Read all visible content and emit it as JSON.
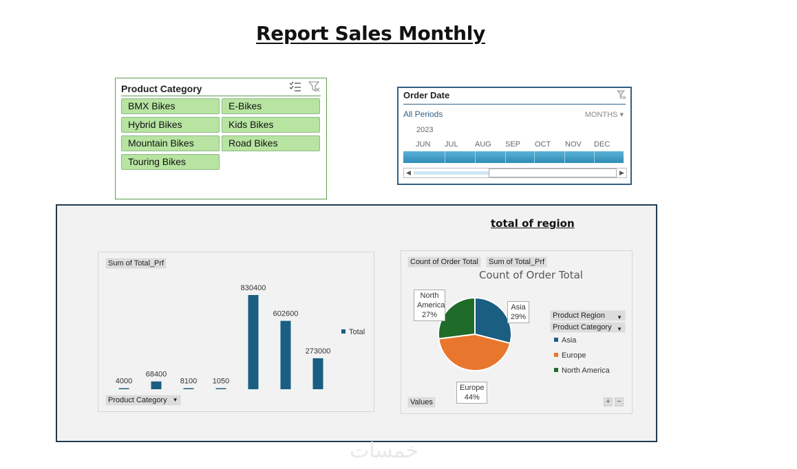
{
  "report": {
    "title": "Report Sales Monthly"
  },
  "slicer": {
    "title": "Product Category",
    "items": [
      "BMX Bikes",
      "E-Bikes",
      "Hybrid Bikes",
      "Kids Bikes",
      "Mountain Bikes",
      "Road Bikes",
      "Touring Bikes"
    ]
  },
  "timeline": {
    "title": "Order Date",
    "periods_label": "All Periods",
    "level": "MONTHS",
    "year": "2023",
    "months": [
      "JUN",
      "JUL",
      "AUG",
      "SEP",
      "OCT",
      "NOV",
      "DEC"
    ]
  },
  "panel": {
    "title": "total of region"
  },
  "bar_chart": {
    "value_field": "Sum of Total_Prf",
    "axis_field": "Product Category",
    "legend": "Total"
  },
  "pie_chart": {
    "value_fields": [
      "Count of Order Total",
      "Sum of Total_Prf"
    ],
    "title": "Count of Order Total",
    "filter_fields": [
      "Product Region",
      "Product Category"
    ],
    "values_button": "Values",
    "expand": "+",
    "collapse": "−",
    "callouts": [
      {
        "label": "Asia",
        "pct": "29%"
      },
      {
        "label": "Europe",
        "pct": "44%"
      },
      {
        "label": "North America",
        "pct": "27%"
      }
    ]
  },
  "chart_data": [
    {
      "type": "bar",
      "title": "",
      "series": [
        {
          "name": "Total",
          "values": [
            4000,
            68400,
            8100,
            1050,
            830400,
            602600,
            273000
          ]
        }
      ],
      "data_labels": [
        "4000",
        "68400",
        "8100",
        "1050",
        "830400",
        "602600",
        "273000"
      ],
      "ylim": [
        0,
        900000
      ],
      "color": "#1a5e82"
    },
    {
      "type": "pie",
      "title": "Count of Order Total",
      "categories": [
        "Asia",
        "Europe",
        "North America"
      ],
      "values": [
        29,
        44,
        27
      ],
      "colors": [
        "#1a5e82",
        "#e8762d",
        "#1f6b2a"
      ]
    }
  ],
  "watermark": "خمسات"
}
